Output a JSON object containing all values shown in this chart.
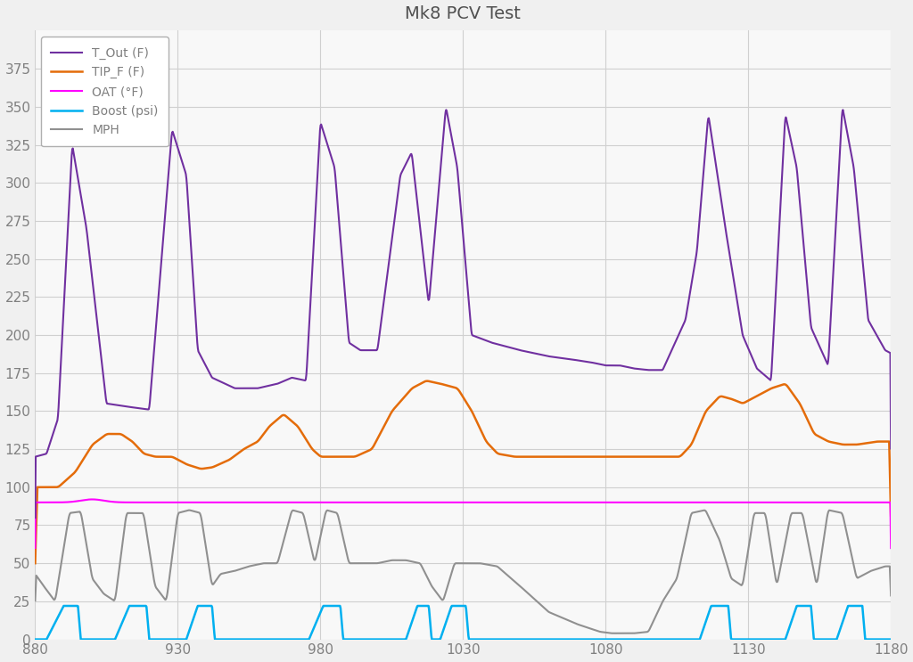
{
  "title": "Mk8 PCV Test",
  "x_min": 880,
  "x_max": 1180,
  "y_min": 0,
  "y_max": 400,
  "x_ticks": [
    880,
    930,
    980,
    1030,
    1080,
    1130,
    1180
  ],
  "y_ticks": [
    0,
    25,
    50,
    75,
    100,
    125,
    150,
    175,
    200,
    225,
    250,
    275,
    300,
    325,
    350,
    375
  ],
  "legend_labels": [
    "T_Out (F)",
    "TIP_F (F)",
    "OAT (°F)",
    "Boost (psi)",
    "MPH"
  ],
  "legend_colors": [
    "#7030a0",
    "#e46c0a",
    "#ff00ff",
    "#00b0f0",
    "#909090"
  ],
  "bg_color": "#f0f0f0",
  "plot_bg_color": "#f8f8f8",
  "grid_color": "#d0d0d0",
  "title_color": "#505050",
  "tick_color": "#808080"
}
